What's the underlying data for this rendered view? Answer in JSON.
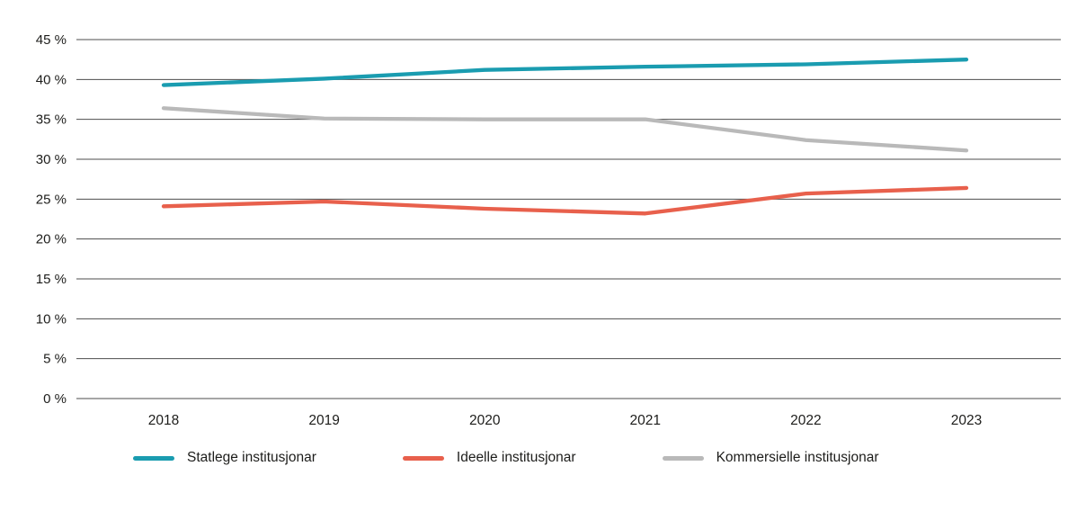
{
  "chart_data": {
    "type": "line",
    "title": "",
    "xlabel": "",
    "ylabel": "",
    "x": [
      2018,
      2019,
      2020,
      2021,
      2022,
      2023
    ],
    "series": [
      {
        "name": "Statlege institusjonar",
        "color": "#1A9CB0",
        "values": [
          39.3,
          40.1,
          41.2,
          41.6,
          41.9,
          42.5
        ]
      },
      {
        "name": "Ideelle institusjonar",
        "color": "#E8604C",
        "values": [
          24.1,
          24.7,
          23.8,
          23.2,
          25.7,
          26.4
        ]
      },
      {
        "name": "Kommersielle institusjonar",
        "color": "#B9B9B9",
        "values": [
          36.4,
          35.1,
          35.0,
          35.0,
          32.4,
          31.1
        ]
      }
    ],
    "ylim": [
      0,
      45
    ],
    "ytick_step": 5,
    "ytick_suffix": " %",
    "grid": true,
    "legend_position": "bottom",
    "colors": {
      "gridline": "#4d4d4d",
      "text": "#1d1d1b"
    }
  }
}
